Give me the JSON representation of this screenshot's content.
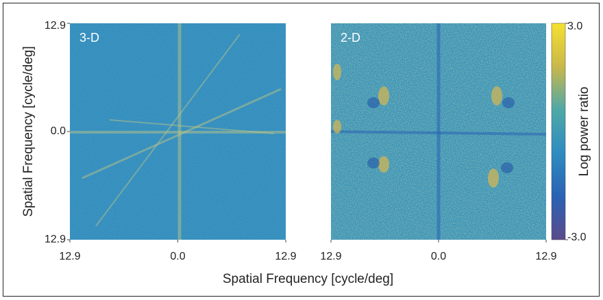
{
  "chart_data": [
    {
      "type": "heatmap",
      "title": "3-D",
      "xlabel": "Spatial Frequency [cycle/deg]",
      "ylabel": "Spatial Frequency [cycle/deg]",
      "xlim": [
        -12.9,
        12.9
      ],
      "ylim": [
        -12.9,
        12.9
      ],
      "xticks": [
        {
          "value": -12.9,
          "label": "12.9"
        },
        {
          "value": 0,
          "label": "0.0"
        },
        {
          "value": 12.9,
          "label": "12.9"
        }
      ],
      "yticks": [
        {
          "value": -12.9,
          "label": "12.9"
        },
        {
          "value": 0,
          "label": "0.0"
        },
        {
          "value": 12.9,
          "label": "12.9"
        }
      ]
    },
    {
      "type": "heatmap",
      "title": "2-D",
      "xlim": [
        -12.9,
        12.9
      ],
      "ylim": [
        -12.9,
        12.9
      ],
      "xticks": [
        {
          "value": -12.9,
          "label": "12.9"
        },
        {
          "value": 0,
          "label": "0.0"
        },
        {
          "value": 12.9,
          "label": "12.9"
        }
      ],
      "colorbar": {
        "label": "Log power ratio",
        "lim": [
          -3,
          3
        ],
        "ticks": [
          {
            "value": 3,
            "label": "3.0"
          },
          {
            "value": -3,
            "label": "-3.0"
          }
        ],
        "colormap": [
          "#5a4a8c",
          "#2a62b4",
          "#2e8cc0",
          "#4ea8a8",
          "#c9b84a",
          "#f5e030"
        ]
      }
    }
  ]
}
